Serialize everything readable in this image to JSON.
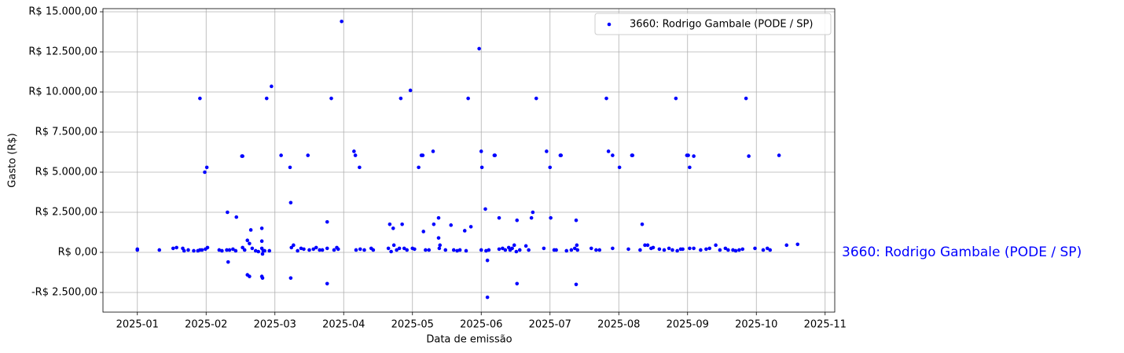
{
  "chart_data": {
    "type": "scatter",
    "xlabel": "Data de emissão",
    "ylabel": "Gasto (R$)",
    "legend": "upper right",
    "grid": true,
    "annotation_position": "right",
    "xlim": [
      0.5,
      11.14
    ],
    "ylim": [
      -3725,
      15196
    ],
    "xticks": [
      {
        "value": 1,
        "label": "2025-01"
      },
      {
        "value": 2,
        "label": "2025-02"
      },
      {
        "value": 3,
        "label": "2025-03"
      },
      {
        "value": 4,
        "label": "2025-04"
      },
      {
        "value": 5,
        "label": "2025-05"
      },
      {
        "value": 6,
        "label": "2025-06"
      },
      {
        "value": 7,
        "label": "2025-07"
      },
      {
        "value": 8,
        "label": "2025-08"
      },
      {
        "value": 9,
        "label": "2025-09"
      },
      {
        "value": 10,
        "label": "2025-10"
      },
      {
        "value": 11,
        "label": "2025-11"
      }
    ],
    "yticks": [
      {
        "value": -2500,
        "label": "-R$ 2.500,00"
      },
      {
        "value": 0,
        "label": "R$ 0,00"
      },
      {
        "value": 2500,
        "label": "R$ 2.500,00"
      },
      {
        "value": 5000,
        "label": "R$ 5.000,00"
      },
      {
        "value": 7500,
        "label": "R$ 7.500,00"
      },
      {
        "value": 10000,
        "label": "R$ 10.000,00"
      },
      {
        "value": 12500,
        "label": "R$ 12.500,00"
      },
      {
        "value": 15000,
        "label": "R$ 15.000,00"
      }
    ],
    "x": [
      1.0,
      1.0,
      1.32,
      1.52,
      1.57,
      1.66,
      1.68,
      1.74,
      1.82,
      1.88,
      1.91,
      1.94,
      1.99,
      2.02,
      1.91,
      1.98,
      2.01,
      2.19,
      2.23,
      2.3,
      2.34,
      2.39,
      2.43,
      2.31,
      2.32,
      2.44,
      2.52,
      2.53,
      2.53,
      2.56,
      2.6,
      2.63,
      2.65,
      2.6,
      2.63,
      2.67,
      2.72,
      2.76,
      2.81,
      2.82,
      2.81,
      2.81,
      2.81,
      2.82,
      2.83,
      2.85,
      2.88,
      2.92,
      2.95,
      3.09,
      3.22,
      3.23,
      3.23,
      3.24,
      3.27,
      3.33,
      3.38,
      3.42,
      3.48,
      3.5,
      3.56,
      3.6,
      3.65,
      3.69,
      3.76,
      3.76,
      3.76,
      3.82,
      3.86,
      3.9,
      3.92,
      3.97,
      4.15,
      4.17,
      4.23,
      4.18,
      4.24,
      4.3,
      4.4,
      4.43,
      4.65,
      4.67,
      4.69,
      4.72,
      4.73,
      4.77,
      4.81,
      4.83,
      4.85,
      4.88,
      4.92,
      4.97,
      5.0,
      5.03,
      5.09,
      5.13,
      5.15,
      5.16,
      5.19,
      5.24,
      5.3,
      5.31,
      5.38,
      5.38,
      5.39,
      5.4,
      5.48,
      5.56,
      5.6,
      5.65,
      5.69,
      5.76,
      5.78,
      5.81,
      5.85,
      5.97,
      6.0,
      6.01,
      6.0,
      6.06,
      6.07,
      6.09,
      6.09,
      6.11,
      6.19,
      6.2,
      6.26,
      6.26,
      6.31,
      6.35,
      6.4,
      6.42,
      6.45,
      6.48,
      6.51,
      6.52,
      6.52,
      6.56,
      6.65,
      6.69,
      6.73,
      6.75,
      6.8,
      6.91,
      6.95,
      7.0,
      7.01,
      7.06,
      7.09,
      7.15,
      7.16,
      7.24,
      7.31,
      7.36,
      7.38,
      7.38,
      7.39,
      7.4,
      7.6,
      7.67,
      7.72,
      7.82,
      7.85,
      7.91,
      7.91,
      8.01,
      8.14,
      8.19,
      8.2,
      8.31,
      8.34,
      8.38,
      8.42,
      8.47,
      8.5,
      8.59,
      8.66,
      8.73,
      8.78,
      8.83,
      8.85,
      8.9,
      8.93,
      8.99,
      9.01,
      9.03,
      9.09,
      9.03,
      9.09,
      9.19,
      9.27,
      9.32,
      9.41,
      9.47,
      9.55,
      9.59,
      9.66,
      9.7,
      9.75,
      9.8,
      9.85,
      9.89,
      9.98,
      10.1,
      10.16,
      10.2,
      10.33,
      10.44,
      10.6
    ],
    "series": [
      {
        "name": "3660: Rodrigo Gambale (PODE / SP)",
        "color": "#0000ff",
        "values": [
          200,
          150,
          150,
          250,
          300,
          250,
          100,
          150,
          100,
          100,
          150,
          150,
          200,
          300,
          9600,
          5000,
          5300,
          150,
          100,
          150,
          150,
          200,
          100,
          2500,
          -600,
          2200,
          6000,
          6000,
          300,
          150,
          750,
          550,
          1400,
          -1400,
          -1500,
          250,
          100,
          50,
          -1500,
          -1600,
          1500,
          700,
          250,
          -100,
          100,
          100,
          9600,
          100,
          10350,
          6050,
          5300,
          3100,
          -1600,
          300,
          450,
          100,
          250,
          200,
          6050,
          150,
          200,
          300,
          150,
          150,
          1900,
          -1950,
          250,
          9600,
          150,
          300,
          200,
          14400,
          6300,
          6050,
          5300,
          150,
          200,
          150,
          250,
          150,
          250,
          1750,
          50,
          1500,
          450,
          150,
          250,
          9600,
          1750,
          250,
          150,
          10100,
          250,
          200,
          5300,
          6050,
          6050,
          1300,
          150,
          150,
          6300,
          1750,
          2150,
          900,
          250,
          450,
          150,
          1700,
          150,
          100,
          150,
          1350,
          100,
          9600,
          1600,
          12700,
          6300,
          5300,
          150,
          2700,
          100,
          -500,
          -2800,
          150,
          6050,
          6050,
          2150,
          200,
          250,
          150,
          300,
          150,
          250,
          450,
          50,
          2000,
          -1950,
          150,
          400,
          150,
          2150,
          2500,
          9600,
          250,
          6300,
          5300,
          2150,
          150,
          150,
          6050,
          6050,
          100,
          150,
          250,
          2000,
          -2000,
          450,
          150,
          250,
          150,
          150,
          9600,
          6300,
          6050,
          250,
          5300,
          200,
          6050,
          6050,
          150,
          1750,
          450,
          450,
          250,
          300,
          200,
          150,
          250,
          150,
          9600,
          100,
          200,
          200,
          6050,
          6050,
          5300,
          6000,
          250,
          250,
          150,
          200,
          250,
          450,
          150,
          250,
          150,
          150,
          100,
          150,
          200,
          9600,
          6000,
          250,
          150,
          250,
          150,
          6050,
          450,
          500
        ]
      }
    ]
  }
}
